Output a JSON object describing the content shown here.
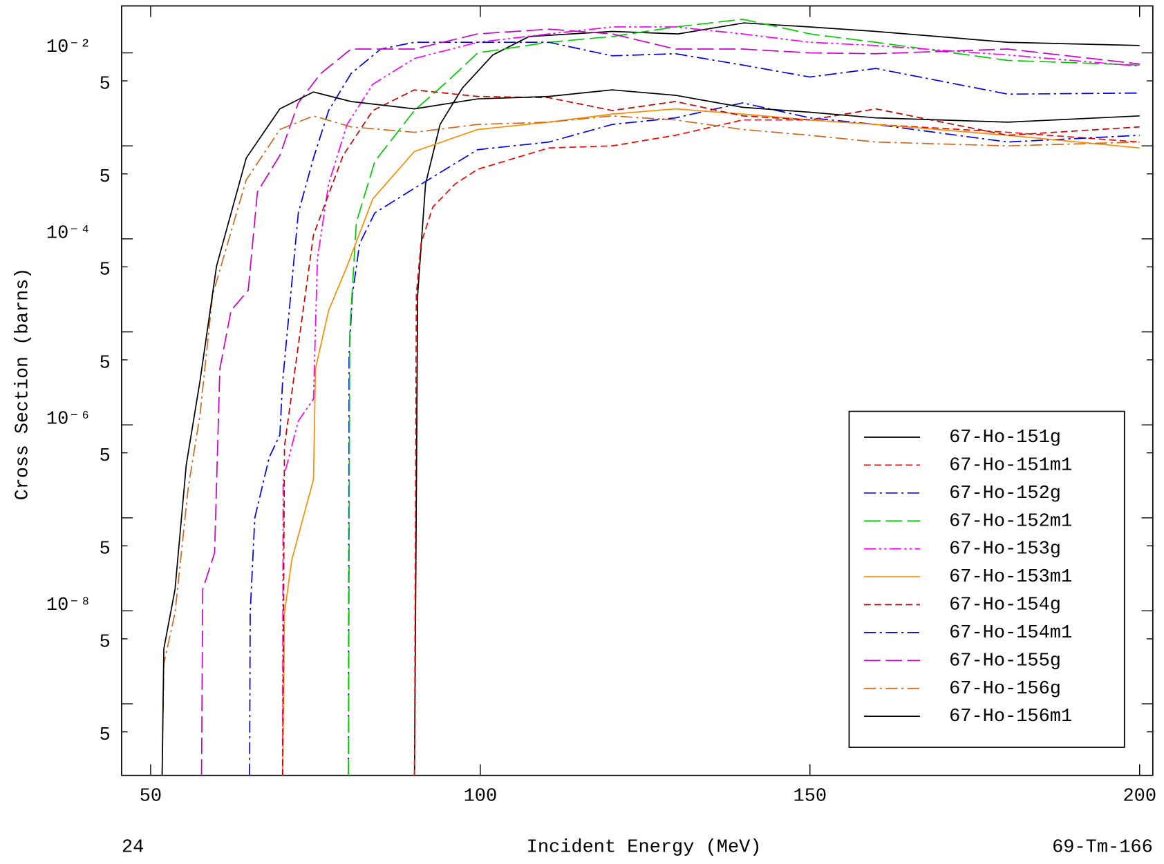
{
  "chart_data": {
    "type": "line",
    "xlabel": "Incident Energy (MeV)",
    "ylabel": "Cross Section (barns)",
    "footer_left": "24",
    "footer_right": "69-Tm-166",
    "log_y": true,
    "xlim": [
      45.6,
      202
    ],
    "xticks": [
      50,
      100,
      150,
      200
    ],
    "ylim": [
      1.7e-10,
      0.032
    ],
    "yticks": [
      {
        "value": 0.01,
        "label": "10⁻²"
      },
      {
        "value": 0.005,
        "label": "5"
      },
      {
        "value": 0.0005,
        "label": "5"
      },
      {
        "value": 0.0001,
        "label": "10⁻⁴"
      },
      {
        "value": 5e-05,
        "label": "5"
      },
      {
        "value": 5e-06,
        "label": "5"
      },
      {
        "value": 1e-06,
        "label": "10⁻⁶"
      },
      {
        "value": 5e-07,
        "label": "5"
      },
      {
        "value": 5e-08,
        "label": "5"
      },
      {
        "value": 1e-08,
        "label": "10⁻⁸"
      },
      {
        "value": 5e-09,
        "label": "5"
      },
      {
        "value": 5e-10,
        "label": "5"
      }
    ],
    "yticks_minor": [
      0.001,
      1e-05,
      1e-07,
      1e-09
    ],
    "legend": "lower right",
    "series": [
      {
        "name": "67-Ho-151g",
        "color": "#000000",
        "style": "solid",
        "x": [
          90,
          90.5,
          91.7,
          93.9,
          97.3,
          101.9,
          107.4,
          120,
          130,
          140,
          150,
          160,
          180,
          200
        ],
        "values": [
          1e-10,
          2.5e-05,
          0.00039,
          0.0017,
          0.0042,
          0.0095,
          0.015,
          0.017,
          0.016,
          0.021,
          0.019,
          0.017,
          0.013,
          0.012
        ]
      },
      {
        "name": "67-Ho-151m1",
        "color": "#ff0000",
        "style": "dashed",
        "x": [
          90,
          90.3,
          91,
          92.8,
          96.2,
          99.6,
          110.4,
          120,
          129.6,
          139.8,
          150,
          160,
          180,
          200
        ],
        "values": [
          1e-10,
          2.5e-05,
          8.9e-05,
          0.00022,
          0.00039,
          0.00056,
          0.00095,
          0.001,
          0.0013,
          0.0019,
          0.0019,
          0.0017,
          0.0014,
          0.0011
        ]
      },
      {
        "name": "67-Ho-152g",
        "color": "#0000ff",
        "style": "dashdot",
        "x": [
          80,
          80.1,
          80.6,
          81.7,
          84,
          90,
          99.6,
          110.4,
          120,
          129.6,
          139.8,
          150,
          160,
          180,
          200
        ],
        "values": [
          1e-10,
          5.8e-06,
          2.5e-05,
          8.9e-05,
          0.00019,
          0.00035,
          0.00091,
          0.0011,
          0.0017,
          0.002,
          0.0029,
          0.002,
          0.0017,
          0.0011,
          0.0013
        ]
      },
      {
        "name": "67-Ho-152m1",
        "color": "#00cc00",
        "style": "longdash",
        "x": [
          80,
          80.2,
          81.2,
          84,
          90,
          95.1,
          99.6,
          110.4,
          120,
          129.6,
          139.8,
          150,
          160,
          180,
          200
        ],
        "values": [
          1e-10,
          1e-05,
          0.00015,
          0.00068,
          0.0024,
          0.005,
          0.01,
          0.013,
          0.015,
          0.019,
          0.023,
          0.016,
          0.013,
          0.0083,
          0.0074
        ]
      },
      {
        "name": "67-Ho-153g",
        "color": "#ff00ff",
        "style": "dashdotdot",
        "x": [
          70,
          70.1,
          72.4,
          74.7,
          75.3,
          77,
          79.8,
          83.7,
          90,
          99.6,
          110.4,
          120,
          129.6,
          139.8,
          150,
          160,
          180,
          200
        ],
        "values": [
          1e-10,
          2.6e-07,
          1.1e-06,
          1.9e-06,
          6.2e-05,
          0.00039,
          0.0017,
          0.0046,
          0.0087,
          0.013,
          0.016,
          0.019,
          0.019,
          0.016,
          0.013,
          0.012,
          0.0095,
          0.0072
        ]
      },
      {
        "name": "67-Ho-153m1",
        "color": "#ff8c00",
        "style": "solid",
        "x": [
          70,
          70.3,
          71.4,
          74.7,
          75,
          77,
          79.8,
          83.7,
          90,
          99.6,
          110.4,
          120,
          129.6,
          139.8,
          150,
          160,
          180,
          200
        ],
        "values": [
          1e-10,
          9.5e-09,
          3.5e-08,
          2.6e-07,
          4e-06,
          1.7e-05,
          5.1e-05,
          0.00027,
          0.00087,
          0.0015,
          0.0018,
          0.0022,
          0.0025,
          0.0022,
          0.0019,
          0.0017,
          0.0013,
          0.00095
        ]
      },
      {
        "name": "67-Ho-154g",
        "color": "#cc0000",
        "style": "dashed",
        "x": [
          70,
          70.3,
          74.7,
          79.2,
          83.7,
          90,
          99.6,
          110.4,
          120,
          129.6,
          139.8,
          150,
          160,
          180,
          200
        ],
        "values": [
          1e-10,
          5.9e-07,
          0.00011,
          0.00079,
          0.0024,
          0.004,
          0.0034,
          0.0033,
          0.0024,
          0.003,
          0.0021,
          0.0019,
          0.0025,
          0.0013,
          0.0016
        ]
      },
      {
        "name": "67-Ho-154m1",
        "color": "#0000ee",
        "style": "dashdot",
        "x": [
          65,
          65.1,
          65.8,
          68,
          69.6,
          70,
          72.4,
          74.7,
          77,
          80.4,
          84.9,
          90,
          99.6,
          110.4,
          120,
          129.6,
          139.8,
          150,
          160,
          180,
          200
        ],
        "values": [
          1e-10,
          9.5e-09,
          1e-07,
          4.5e-07,
          7.8e-07,
          2.8e-06,
          0.00019,
          0.00074,
          0.0024,
          0.006,
          0.011,
          0.013,
          0.013,
          0.013,
          0.0093,
          0.0098,
          0.0074,
          0.0055,
          0.0068,
          0.0036,
          0.0037
        ]
      },
      {
        "name": "67-Ho-155g",
        "color": "#cc00cc",
        "style": "longdash",
        "x": [
          57.7,
          57.9,
          59.7,
          60.5,
          62.2,
          64.8,
          66.2,
          69.6,
          72.4,
          75.8,
          80.4,
          90,
          99.6,
          110.4,
          120,
          129.6,
          139.8,
          150,
          160,
          180,
          200
        ],
        "values": [
          1e-10,
          1.7e-08,
          4.2e-08,
          4e-06,
          1.7e-05,
          2.8e-05,
          0.00032,
          0.00079,
          0.0029,
          0.006,
          0.011,
          0.011,
          0.016,
          0.018,
          0.016,
          0.011,
          0.011,
          0.01,
          0.0098,
          0.011,
          0.0076
        ]
      },
      {
        "name": "67-Ho-156g",
        "color": "#d2691e",
        "style": "dashdot",
        "x": [
          51.7,
          52,
          53.7,
          55.7,
          57.5,
          59.4,
          64.5,
          69.6,
          74.7,
          80.4,
          90,
          99.6,
          110.4,
          120,
          129.6,
          139.8,
          150,
          160,
          180,
          200
        ],
        "values": [
          1e-10,
          2.7e-09,
          9.5e-09,
          2.1e-07,
          1.3e-06,
          2.5e-05,
          0.00043,
          0.0015,
          0.0021,
          0.0016,
          0.0014,
          0.0017,
          0.0018,
          0.0021,
          0.0019,
          0.0015,
          0.0013,
          0.0011,
          0.001,
          0.0011
        ]
      },
      {
        "name": "67-Ho-156m1",
        "color": "#000000",
        "style": "solid",
        "x": [
          51.7,
          52,
          53.7,
          55.4,
          57.5,
          60,
          64.5,
          69.6,
          74.7,
          80.4,
          90,
          99.6,
          110.4,
          120,
          129.6,
          139.8,
          150,
          160,
          180,
          200
        ],
        "values": [
          1e-10,
          3.9e-09,
          1.7e-08,
          3.7e-07,
          3e-06,
          5.1e-05,
          0.00074,
          0.0025,
          0.0038,
          0.003,
          0.0025,
          0.0032,
          0.0034,
          0.004,
          0.0035,
          0.0026,
          0.0023,
          0.002,
          0.0018,
          0.0021
        ]
      }
    ]
  }
}
